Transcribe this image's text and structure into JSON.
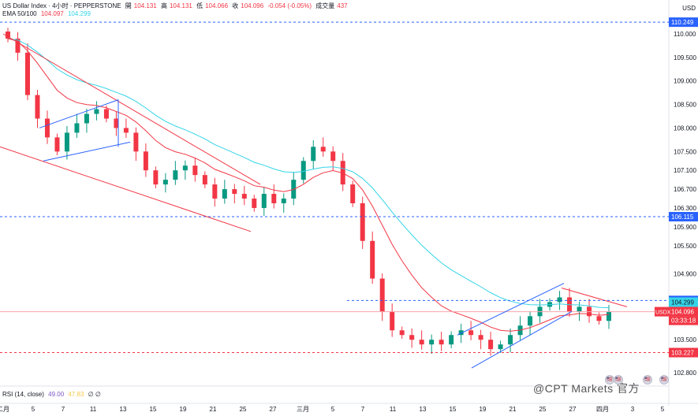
{
  "header": {
    "symbol": "US Dollar Index · 4小时 · PEPPERSTONE",
    "open_label": "開",
    "open": "104.131",
    "high_label": "高",
    "high": "104.131",
    "low_label": "低",
    "low": "104.066",
    "close_label": "收",
    "close": "104.096",
    "change": "-0.054 (-0.05%)",
    "volume_label": "成交量",
    "volume": "437",
    "ema_label": "EMA 50/100",
    "ema50": "104.097",
    "ema100": "104.299"
  },
  "currency": "USD",
  "rsi": {
    "label": "RSI (14, close)",
    "value1": "49.00",
    "value2": "47.83",
    "extra": "∅ ∅"
  },
  "watermark": "@CPT Markets 官方",
  "symbol_tag": "USDX",
  "countdown": "03:33:18",
  "colors": {
    "up": "#089981",
    "down": "#f23645",
    "ema50": "#f23645",
    "ema100": "#35d4e8",
    "trend": "#2962ff"
  },
  "chart_data": {
    "type": "candlestick",
    "price_axis_ticks": [
      "110.000",
      "109.500",
      "109.000",
      "108.500",
      "108.000",
      "107.500",
      "107.100",
      "106.700",
      "106.300",
      "105.900",
      "105.500",
      "104.900",
      "103.900",
      "103.500",
      "102.800"
    ],
    "time_axis_ticks": [
      "二月",
      "5",
      "7",
      "11",
      "13",
      "15",
      "19",
      "21",
      "25",
      "27",
      "三月",
      "5",
      "7",
      "11",
      "13",
      "15",
      "19",
      "21",
      "25",
      "27",
      "四月",
      "3",
      "5"
    ],
    "price_labels": [
      {
        "value": "110.249",
        "kind": "line"
      },
      {
        "value": "106.115",
        "kind": "line"
      },
      {
        "value": "104.335",
        "kind": "level"
      },
      {
        "value": "104.299",
        "kind": "ema100"
      },
      {
        "value": "104.097",
        "kind": "ema50"
      },
      {
        "value": "104.096",
        "kind": "last"
      },
      {
        "value": "103.227",
        "kind": "line"
      }
    ],
    "approx_close_path": [
      109.9,
      109.6,
      108.7,
      108.2,
      107.8,
      107.5,
      107.9,
      108.1,
      108.3,
      108.4,
      108.2,
      108.0,
      107.9,
      107.5,
      107.1,
      106.8,
      106.9,
      107.1,
      107.2,
      107.0,
      106.8,
      106.5,
      106.7,
      106.6,
      106.5,
      106.3,
      106.6,
      106.4,
      106.5,
      106.9,
      107.3,
      107.6,
      107.5,
      107.3,
      106.8,
      106.4,
      105.6,
      104.8,
      104.1,
      103.7,
      103.6,
      103.5,
      103.4,
      103.5,
      103.4,
      103.6,
      103.7,
      103.6,
      103.5,
      103.3,
      103.4,
      103.6,
      103.8,
      104.0,
      104.2,
      104.3,
      104.4,
      104.1,
      104.2,
      104.0,
      103.9,
      104.1
    ]
  },
  "events": [
    "🇺🇸",
    "🇺🇸",
    "🇺🇸",
    "🇺🇸"
  ]
}
